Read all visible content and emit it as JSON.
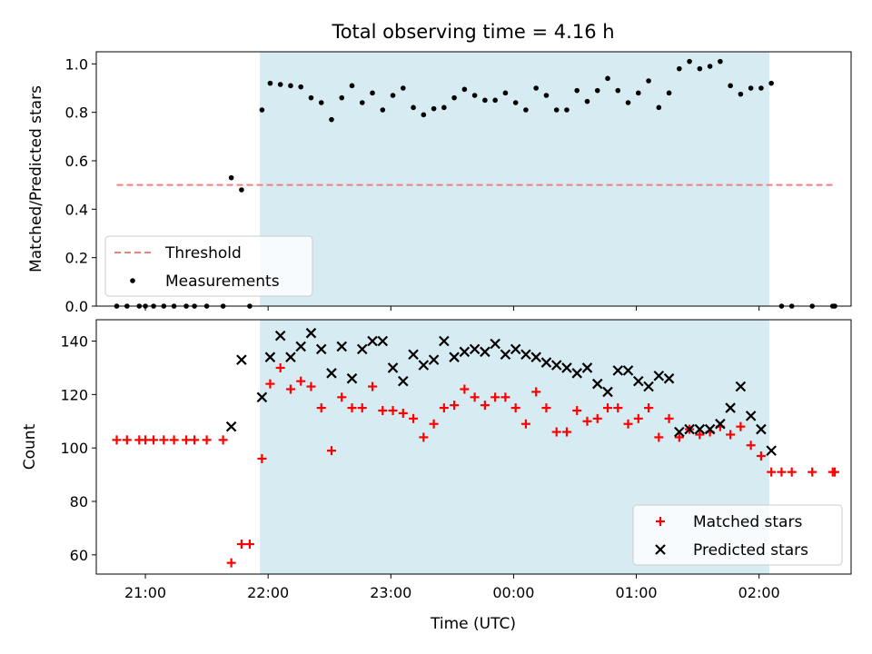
{
  "colors": {
    "span": "#add8e6",
    "threshold": "#f08080",
    "matched": "#ff0000",
    "predicted": "#000000",
    "measurement": "#000000"
  },
  "chart_data": [
    {
      "type": "scatter",
      "title": "Total observing time = 4.16 h",
      "xlabel": "",
      "ylabel": "Matched/Predicted stars",
      "ylim": [
        0,
        1.05
      ],
      "yticks": [
        "0.0",
        "0.2",
        "0.4",
        "0.6",
        "0.8",
        "1.0"
      ],
      "xlim_hours": [
        20.6,
        26.75
      ],
      "observing_span": [
        "21:56",
        "02:05"
      ],
      "grid": false,
      "legend": "lower-left",
      "threshold": {
        "name": "Threshold",
        "value": 0.5,
        "x": [
          "20:46",
          "02:36"
        ]
      },
      "series": [
        {
          "name": "Measurements",
          "marker": "dot",
          "points": [
            [
              "20:46",
              0
            ],
            [
              "20:51",
              0
            ],
            [
              "20:57",
              0
            ],
            [
              "21:00",
              0
            ],
            [
              "21:04",
              0
            ],
            [
              "21:09",
              0
            ],
            [
              "21:14",
              0
            ],
            [
              "21:20",
              0
            ],
            [
              "21:24",
              0
            ],
            [
              "21:30",
              0
            ],
            [
              "21:38",
              0
            ],
            [
              "21:42",
              0.53
            ],
            [
              "21:47",
              0.48
            ],
            [
              "21:51",
              0
            ],
            [
              "21:57",
              0.81
            ],
            [
              "22:01",
              0.92
            ],
            [
              "22:06",
              0.915
            ],
            [
              "22:11",
              0.91
            ],
            [
              "22:16",
              0.905
            ],
            [
              "22:21",
              0.86
            ],
            [
              "22:26",
              0.84
            ],
            [
              "22:31",
              0.77
            ],
            [
              "22:36",
              0.86
            ],
            [
              "22:41",
              0.91
            ],
            [
              "22:46",
              0.84
            ],
            [
              "22:51",
              0.88
            ],
            [
              "22:56",
              0.81
            ],
            [
              "23:01",
              0.87
            ],
            [
              "23:06",
              0.9
            ],
            [
              "23:11",
              0.82
            ],
            [
              "23:16",
              0.79
            ],
            [
              "23:21",
              0.815
            ],
            [
              "23:26",
              0.82
            ],
            [
              "23:31",
              0.86
            ],
            [
              "23:36",
              0.895
            ],
            [
              "23:41",
              0.87
            ],
            [
              "23:46",
              0.85
            ],
            [
              "23:51",
              0.85
            ],
            [
              "23:56",
              0.88
            ],
            [
              "00:01",
              0.84
            ],
            [
              "00:06",
              0.81
            ],
            [
              "00:11",
              0.9
            ],
            [
              "00:16",
              0.87
            ],
            [
              "00:21",
              0.81
            ],
            [
              "00:26",
              0.81
            ],
            [
              "00:31",
              0.89
            ],
            [
              "00:36",
              0.845
            ],
            [
              "00:41",
              0.89
            ],
            [
              "00:46",
              0.94
            ],
            [
              "00:51",
              0.89
            ],
            [
              "00:56",
              0.84
            ],
            [
              "01:01",
              0.88
            ],
            [
              "01:06",
              0.93
            ],
            [
              "01:11",
              0.82
            ],
            [
              "01:16",
              0.88
            ],
            [
              "01:21",
              0.98
            ],
            [
              "01:26",
              1.01
            ],
            [
              "01:31",
              0.98
            ],
            [
              "01:36",
              0.99
            ],
            [
              "01:41",
              1.01
            ],
            [
              "01:46",
              0.91
            ],
            [
              "01:51",
              0.875
            ],
            [
              "01:56",
              0.9
            ],
            [
              "02:01",
              0.9
            ],
            [
              "02:06",
              0.92
            ],
            [
              "02:11",
              0
            ],
            [
              "02:16",
              0
            ],
            [
              "02:26",
              0
            ],
            [
              "02:36",
              0
            ],
            [
              "02:37",
              0
            ]
          ]
        }
      ]
    },
    {
      "type": "scatter",
      "title": "",
      "xlabel": "Time (UTC)",
      "ylabel": "Count",
      "ylim": [
        52.8,
        148
      ],
      "yticks": [
        "60",
        "80",
        "100",
        "120",
        "140"
      ],
      "xticks": [
        "21:00",
        "22:00",
        "23:00",
        "00:00",
        "01:00",
        "02:00"
      ],
      "xlim_hours": [
        20.6,
        26.75
      ],
      "observing_span": [
        "21:56",
        "02:05"
      ],
      "grid": false,
      "legend": "lower-right",
      "series": [
        {
          "name": "Matched stars",
          "marker": "plus",
          "points": [
            [
              "20:46",
              103
            ],
            [
              "20:51",
              103
            ],
            [
              "20:57",
              103
            ],
            [
              "21:00",
              103
            ],
            [
              "21:04",
              103
            ],
            [
              "21:09",
              103
            ],
            [
              "21:14",
              103
            ],
            [
              "21:20",
              103
            ],
            [
              "21:24",
              103
            ],
            [
              "21:30",
              103
            ],
            [
              "21:38",
              103
            ],
            [
              "21:42",
              57
            ],
            [
              "21:47",
              64
            ],
            [
              "21:51",
              64
            ],
            [
              "21:57",
              96
            ],
            [
              "22:01",
              124
            ],
            [
              "22:06",
              130
            ],
            [
              "22:11",
              122
            ],
            [
              "22:16",
              125
            ],
            [
              "22:21",
              123
            ],
            [
              "22:26",
              115
            ],
            [
              "22:31",
              99
            ],
            [
              "22:36",
              119
            ],
            [
              "22:41",
              115
            ],
            [
              "22:46",
              115
            ],
            [
              "22:51",
              123
            ],
            [
              "22:56",
              114
            ],
            [
              "23:01",
              114
            ],
            [
              "23:06",
              113
            ],
            [
              "23:11",
              111
            ],
            [
              "23:16",
              104
            ],
            [
              "23:21",
              109
            ],
            [
              "23:26",
              115
            ],
            [
              "23:31",
              116
            ],
            [
              "23:36",
              122
            ],
            [
              "23:41",
              119
            ],
            [
              "23:46",
              116
            ],
            [
              "23:51",
              119
            ],
            [
              "23:56",
              119
            ],
            [
              "00:01",
              115
            ],
            [
              "00:06",
              109
            ],
            [
              "00:11",
              121
            ],
            [
              "00:16",
              115
            ],
            [
              "00:21",
              106
            ],
            [
              "00:26",
              106
            ],
            [
              "00:31",
              114
            ],
            [
              "00:36",
              110
            ],
            [
              "00:41",
              111
            ],
            [
              "00:46",
              115
            ],
            [
              "00:51",
              115
            ],
            [
              "00:56",
              109
            ],
            [
              "01:01",
              111
            ],
            [
              "01:06",
              115
            ],
            [
              "01:11",
              104
            ],
            [
              "01:16",
              111
            ],
            [
              "01:21",
              104
            ],
            [
              "01:26",
              107
            ],
            [
              "01:31",
              105
            ],
            [
              "01:36",
              106
            ],
            [
              "01:41",
              108
            ],
            [
              "01:46",
              105
            ],
            [
              "01:51",
              108
            ],
            [
              "01:56",
              101
            ],
            [
              "02:01",
              97
            ],
            [
              "02:06",
              91
            ],
            [
              "02:11",
              91
            ],
            [
              "02:16",
              91
            ],
            [
              "02:26",
              91
            ],
            [
              "02:36",
              91
            ],
            [
              "02:37",
              91
            ]
          ]
        },
        {
          "name": "Predicted stars",
          "marker": "x",
          "points": [
            [
              "21:42",
              108
            ],
            [
              "21:47",
              133
            ],
            [
              "21:57",
              119
            ],
            [
              "22:01",
              134
            ],
            [
              "22:06",
              142
            ],
            [
              "22:11",
              134
            ],
            [
              "22:16",
              138
            ],
            [
              "22:21",
              143
            ],
            [
              "22:26",
              137
            ],
            [
              "22:31",
              128
            ],
            [
              "22:36",
              138
            ],
            [
              "22:41",
              126
            ],
            [
              "22:46",
              137
            ],
            [
              "22:51",
              140
            ],
            [
              "22:56",
              140
            ],
            [
              "23:01",
              130
            ],
            [
              "23:06",
              125
            ],
            [
              "23:11",
              135
            ],
            [
              "23:16",
              131
            ],
            [
              "23:21",
              133
            ],
            [
              "23:26",
              140
            ],
            [
              "23:31",
              134
            ],
            [
              "23:36",
              136
            ],
            [
              "23:41",
              137
            ],
            [
              "23:46",
              136
            ],
            [
              "23:51",
              139
            ],
            [
              "23:56",
              135
            ],
            [
              "00:01",
              137
            ],
            [
              "00:06",
              135
            ],
            [
              "00:11",
              134
            ],
            [
              "00:16",
              132
            ],
            [
              "00:21",
              131
            ],
            [
              "00:26",
              130
            ],
            [
              "00:31",
              128
            ],
            [
              "00:36",
              130
            ],
            [
              "00:41",
              124
            ],
            [
              "00:46",
              121
            ],
            [
              "00:51",
              129
            ],
            [
              "00:56",
              129
            ],
            [
              "01:01",
              125
            ],
            [
              "01:06",
              123
            ],
            [
              "01:11",
              127
            ],
            [
              "01:16",
              126
            ],
            [
              "01:21",
              106
            ],
            [
              "01:26",
              107
            ],
            [
              "01:31",
              107
            ],
            [
              "01:36",
              107
            ],
            [
              "01:41",
              109
            ],
            [
              "01:46",
              115
            ],
            [
              "01:51",
              123
            ],
            [
              "01:56",
              112
            ],
            [
              "02:01",
              107
            ],
            [
              "02:06",
              99
            ]
          ]
        }
      ]
    }
  ]
}
